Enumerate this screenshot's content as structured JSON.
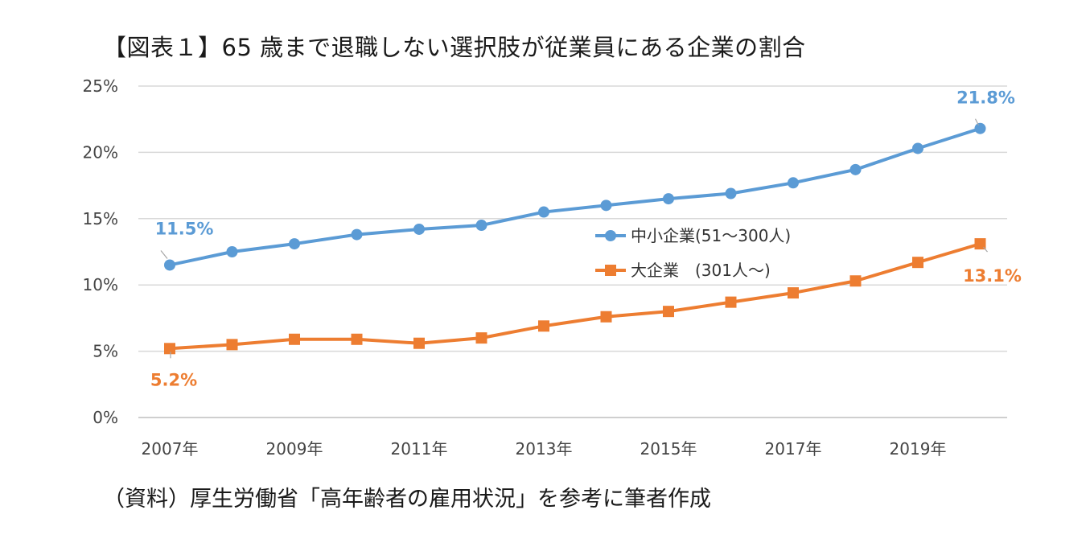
{
  "title": "【図表１】65 歳まで退職しない選択肢が従業員にある企業の割合",
  "source": "（資料）厚生労働省「高年齢者の雇用状況」を参考に筆者作成",
  "colors": {
    "small": "#5b9bd5",
    "large": "#ed7d31",
    "grid": "#d9d9d9",
    "axis": "#bfbfbf"
  },
  "chart_data": {
    "type": "line",
    "x": [
      2007,
      2008,
      2009,
      2010,
      2011,
      2012,
      2013,
      2014,
      2015,
      2016,
      2017,
      2018,
      2019,
      2020
    ],
    "x_tick_labels": [
      "2007年",
      "2009年",
      "2011年",
      "2013年",
      "2015年",
      "2017年",
      "2019年"
    ],
    "x_tick_years": [
      2007,
      2009,
      2011,
      2013,
      2015,
      2017,
      2019
    ],
    "y_ticks": [
      0,
      5,
      10,
      15,
      20,
      25
    ],
    "y_tick_labels": [
      "0%",
      "5%",
      "10%",
      "15%",
      "20%",
      "25%"
    ],
    "ylim": [
      0,
      25
    ],
    "grid": true,
    "legend_position": "center-right",
    "series": [
      {
        "name": "中小企業(51～300人)",
        "marker": "circle",
        "color": "#5b9bd5",
        "values": [
          11.5,
          12.5,
          13.1,
          13.8,
          14.2,
          14.5,
          15.5,
          16.0,
          16.5,
          16.9,
          17.7,
          18.7,
          20.3,
          21.8
        ],
        "labels": [
          {
            "index": 0,
            "text": "11.5%"
          },
          {
            "index": 13,
            "text": "21.8%"
          }
        ]
      },
      {
        "name": "大企業　(301人～)",
        "marker": "square",
        "color": "#ed7d31",
        "values": [
          5.2,
          5.5,
          5.9,
          5.9,
          5.6,
          6.0,
          6.9,
          7.6,
          8.0,
          8.7,
          9.4,
          10.3,
          11.7,
          13.1
        ],
        "labels": [
          {
            "index": 0,
            "text": "5.2%"
          },
          {
            "index": 13,
            "text": "13.1%"
          }
        ]
      }
    ]
  }
}
